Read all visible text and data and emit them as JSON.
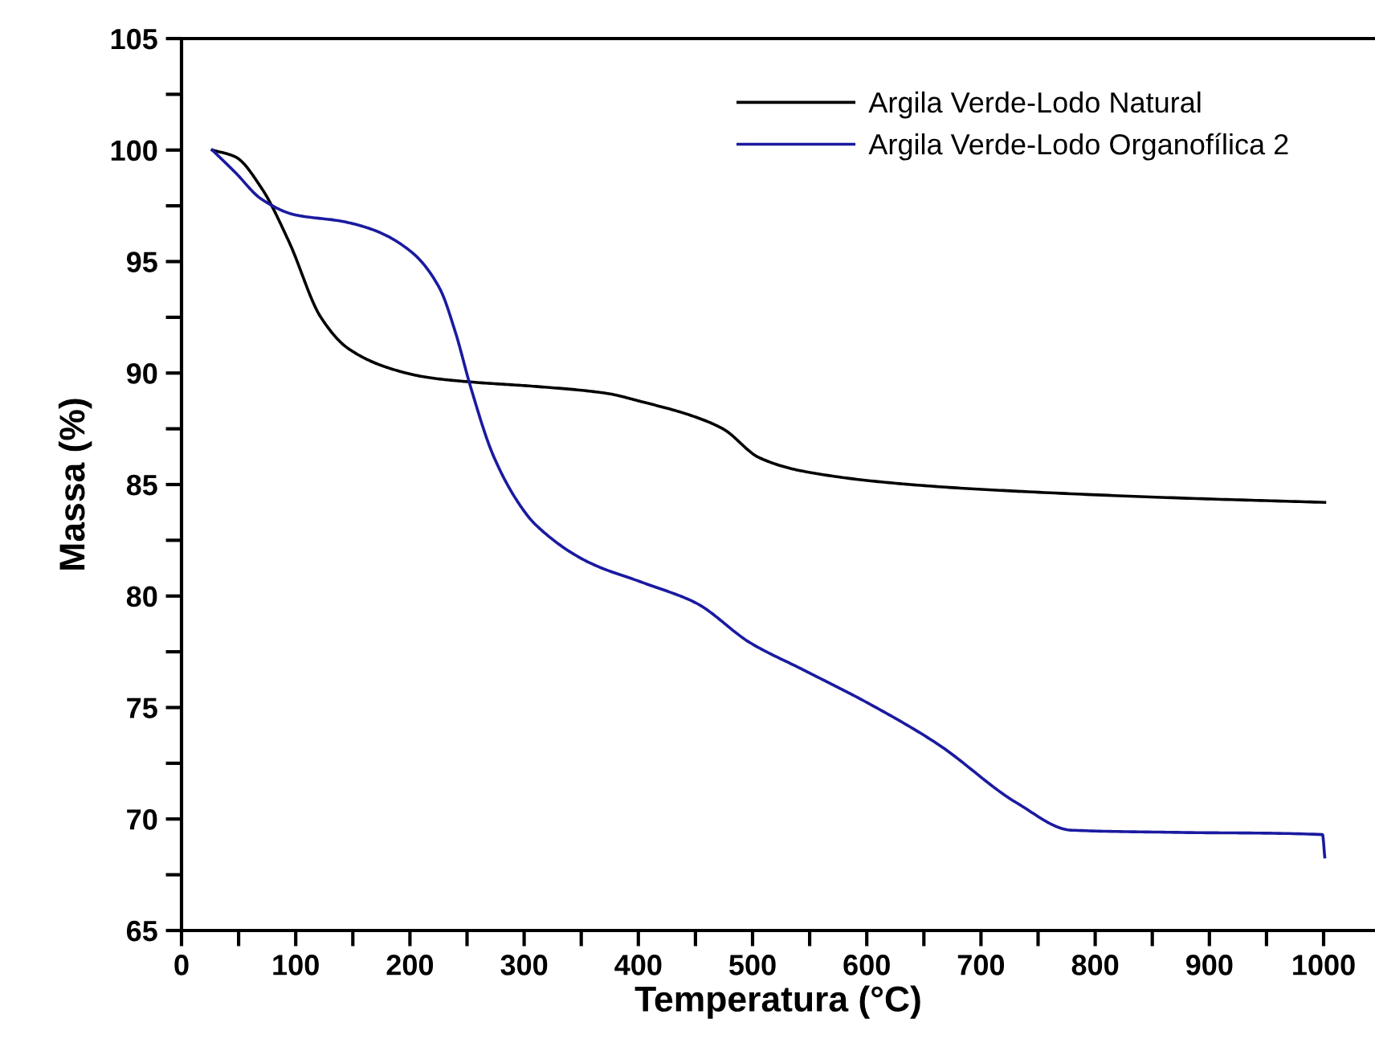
{
  "chart_data": {
    "type": "line",
    "xlabel": "Temperatura (°C)",
    "ylabel": "Massa (%)",
    "xlim": [
      0,
      1045
    ],
    "ylim": [
      65,
      105
    ],
    "xticks": [
      0,
      {
        "value": 50,
        "label": null
      },
      100,
      {
        "value": 150,
        "label": null
      },
      200,
      {
        "value": 250,
        "label": null
      },
      300,
      {
        "value": 350,
        "label": null
      },
      400,
      {
        "value": 450,
        "label": null
      },
      500,
      {
        "value": 550,
        "label": null
      },
      600,
      {
        "value": 650,
        "label": null
      },
      700,
      {
        "value": 750,
        "label": null
      },
      800,
      {
        "value": 850,
        "label": null
      },
      900,
      {
        "value": 950,
        "label": null
      },
      1000
    ],
    "yticks": [
      65,
      {
        "value": 67.5,
        "label": null
      },
      70,
      {
        "value": 72.5,
        "label": null
      },
      75,
      {
        "value": 77.5,
        "label": null
      },
      80,
      {
        "value": 82.5,
        "label": null
      },
      85,
      {
        "value": 87.5,
        "label": null
      },
      90,
      {
        "value": 92.5,
        "label": null
      },
      95,
      {
        "value": 97.5,
        "label": null
      },
      100,
      {
        "value": 102.5,
        "label": null
      },
      105
    ],
    "grid": false,
    "legend": "top right",
    "marker": "none",
    "line_style": "solid",
    "series": [
      {
        "name": "Argila Verde-Lodo Natural",
        "color": "#000000",
        "x": [
          27,
          47,
          70,
          94,
          122,
          146,
          183,
          216,
          253,
          310,
          371,
          404,
          446,
          474,
          506,
          544,
          638,
          732,
          872,
          1001
        ],
        "values": [
          100.0,
          99.7,
          98.3,
          95.9,
          92.5,
          91.1,
          90.2,
          89.8,
          89.6,
          89.4,
          89.1,
          88.7,
          88.1,
          87.5,
          86.2,
          85.6,
          85.0,
          84.7,
          84.4,
          84.2
        ]
      },
      {
        "name": "Argila Verde-Lodo Organofílica 2",
        "color": "#1a1aa0",
        "x": [
          27,
          47,
          70,
          99,
          141,
          169,
          202,
          226,
          240,
          253,
          273,
          296,
          310,
          357,
          404,
          450,
          498,
          544,
          601,
          661,
          732,
          779,
          872,
          999,
          1001
        ],
        "values": [
          100.0,
          99.0,
          97.8,
          97.1,
          96.8,
          96.4,
          95.4,
          93.8,
          91.8,
          89.4,
          86.3,
          84.1,
          83.2,
          81.5,
          80.6,
          79.7,
          77.9,
          76.7,
          75.2,
          73.4,
          70.7,
          69.5,
          69.4,
          69.3,
          68.3
        ]
      }
    ]
  }
}
